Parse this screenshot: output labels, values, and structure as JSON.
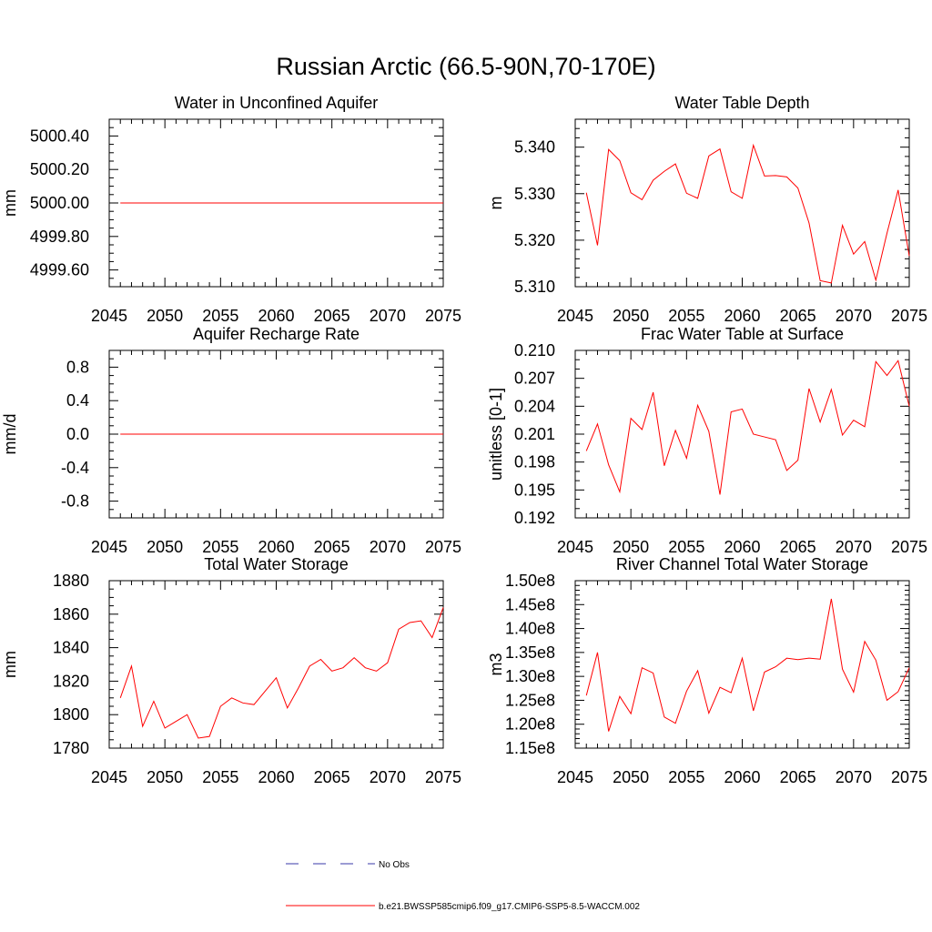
{
  "figure": {
    "title": "Russian Arctic (66.5-90N,70-170E)"
  },
  "colors": {
    "model": "#ff0000",
    "obs": "#3a3aa8",
    "axis": "#000000"
  },
  "legend": {
    "placement": "bottom-center",
    "entries": [
      {
        "label": "No Obs",
        "style": "dashed",
        "color": "#3a3aa8"
      },
      {
        "label": "b.e21.BWSSP585cmip6.f09_g17.CMIP6-SSP5-8.5-WACCM.002",
        "style": "solid",
        "color": "#ff0000"
      }
    ]
  },
  "chart_data": [
    {
      "type": "line",
      "title": "Water in Unconfined Aquifer",
      "ylabel": "mm",
      "xlim": [
        2045,
        2075
      ],
      "ylim": [
        4999.5,
        5000.5
      ],
      "xticks": [
        2045,
        2050,
        2055,
        2060,
        2065,
        2070,
        2075
      ],
      "yticks": [
        4999.6,
        4999.8,
        5000.0,
        5000.2,
        5000.4
      ],
      "ytick_labels": [
        "4999.60",
        "4999.80",
        "5000.00",
        "5000.20",
        "5000.40"
      ],
      "ydigits": 2,
      "yminor": 0.05,
      "x": [
        2046,
        2047,
        2048,
        2049,
        2050,
        2051,
        2052,
        2053,
        2054,
        2055,
        2056,
        2057,
        2058,
        2059,
        2060,
        2061,
        2062,
        2063,
        2064,
        2065,
        2066,
        2067,
        2068,
        2069,
        2070,
        2071,
        2072,
        2073,
        2074,
        2075
      ],
      "series": [
        {
          "name": "b.e21.BWSSP585cmip6.f09_g17.CMIP6-SSP5-8.5-WACCM.002",
          "values": [
            5000,
            5000,
            5000,
            5000,
            5000,
            5000,
            5000,
            5000,
            5000,
            5000,
            5000,
            5000,
            5000,
            5000,
            5000,
            5000,
            5000,
            5000,
            5000,
            5000,
            5000,
            5000,
            5000,
            5000,
            5000,
            5000,
            5000,
            5000,
            5000,
            5000
          ]
        }
      ]
    },
    {
      "type": "line",
      "title": "Water Table Depth",
      "ylabel": "m",
      "xlim": [
        2045,
        2075
      ],
      "ylim": [
        5.31,
        5.346
      ],
      "xticks": [
        2045,
        2050,
        2055,
        2060,
        2065,
        2070,
        2075
      ],
      "yticks": [
        5.31,
        5.32,
        5.33,
        5.34
      ],
      "ytick_labels": [
        "5.310",
        "5.320",
        "5.330",
        "5.340"
      ],
      "ydigits": 3,
      "yminor": 0.002,
      "x": [
        2046,
        2047,
        2048,
        2049,
        2050,
        2051,
        2052,
        2053,
        2054,
        2055,
        2056,
        2057,
        2058,
        2059,
        2060,
        2061,
        2062,
        2063,
        2064,
        2065,
        2066,
        2067,
        2068,
        2069,
        2070,
        2071,
        2072,
        2073,
        2074,
        2075
      ],
      "series": [
        {
          "name": "b.e21.BWSSP585cmip6.f09_g17.CMIP6-SSP5-8.5-WACCM.002",
          "values": [
            5.3302,
            5.3189,
            5.3395,
            5.3371,
            5.3302,
            5.3287,
            5.3329,
            5.3348,
            5.3364,
            5.3301,
            5.329,
            5.3381,
            5.3396,
            5.3304,
            5.329,
            5.3404,
            5.3338,
            5.3339,
            5.3336,
            5.3312,
            5.3237,
            5.3113,
            5.3108,
            5.3232,
            5.317,
            5.3197,
            5.3114,
            5.3215,
            5.3308,
            5.3166
          ]
        }
      ]
    },
    {
      "type": "line",
      "title": "Aquifer Recharge Rate",
      "ylabel": "mm/d",
      "xlim": [
        2045,
        2075
      ],
      "ylim": [
        -1.0,
        1.0
      ],
      "xticks": [
        2045,
        2050,
        2055,
        2060,
        2065,
        2070,
        2075
      ],
      "yticks": [
        -0.8,
        -0.4,
        0.0,
        0.4,
        0.8
      ],
      "ytick_labels": [
        "-0.8",
        "-0.4",
        "0.0",
        "0.4",
        "0.8"
      ],
      "ydigits": 1,
      "yminor": 0.1,
      "x": [
        2046,
        2047,
        2048,
        2049,
        2050,
        2051,
        2052,
        2053,
        2054,
        2055,
        2056,
        2057,
        2058,
        2059,
        2060,
        2061,
        2062,
        2063,
        2064,
        2065,
        2066,
        2067,
        2068,
        2069,
        2070,
        2071,
        2072,
        2073,
        2074,
        2075
      ],
      "series": [
        {
          "name": "b.e21.BWSSP585cmip6.f09_g17.CMIP6-SSP5-8.5-WACCM.002",
          "values": [
            0,
            0,
            0,
            0,
            0,
            0,
            0,
            0,
            0,
            0,
            0,
            0,
            0,
            0,
            0,
            0,
            0,
            0,
            0,
            0,
            0,
            0,
            0,
            0,
            0,
            0,
            0,
            0,
            0,
            0
          ]
        }
      ]
    },
    {
      "type": "line",
      "title": "Frac Water Table at Surface",
      "ylabel": "unitless [0-1]",
      "xlim": [
        2045,
        2075
      ],
      "ylim": [
        0.192,
        0.21
      ],
      "xticks": [
        2045,
        2050,
        2055,
        2060,
        2065,
        2070,
        2075
      ],
      "yticks": [
        0.192,
        0.195,
        0.198,
        0.201,
        0.204,
        0.207,
        0.21
      ],
      "ytick_labels": [
        "0.192",
        "0.195",
        "0.198",
        "0.201",
        "0.204",
        "0.207",
        "0.210"
      ],
      "ydigits": 3,
      "yminor": 0.001,
      "x": [
        2046,
        2047,
        2048,
        2049,
        2050,
        2051,
        2052,
        2053,
        2054,
        2055,
        2056,
        2057,
        2058,
        2059,
        2060,
        2061,
        2062,
        2063,
        2064,
        2065,
        2066,
        2067,
        2068,
        2069,
        2070,
        2071,
        2072,
        2073,
        2074,
        2075
      ],
      "series": [
        {
          "name": "b.e21.BWSSP585cmip6.f09_g17.CMIP6-SSP5-8.5-WACCM.002",
          "values": [
            0.1992,
            0.2021,
            0.1977,
            0.1948,
            0.2027,
            0.2015,
            0.2055,
            0.1976,
            0.2014,
            0.1984,
            0.2041,
            0.2013,
            0.1945,
            0.2034,
            0.2037,
            0.201,
            0.2007,
            0.2004,
            0.1971,
            0.1982,
            0.2059,
            0.2023,
            0.2058,
            0.2009,
            0.2025,
            0.2018,
            0.2088,
            0.2073,
            0.2089,
            0.204
          ]
        }
      ]
    },
    {
      "type": "line",
      "title": "Total Water Storage",
      "ylabel": "mm",
      "xlim": [
        2045,
        2075
      ],
      "ylim": [
        1780,
        1880
      ],
      "xticks": [
        2045,
        2050,
        2055,
        2060,
        2065,
        2070,
        2075
      ],
      "yticks": [
        1780,
        1800,
        1820,
        1840,
        1860,
        1880
      ],
      "ytick_labels": [
        "1780",
        "1800",
        "1820",
        "1840",
        "1860",
        "1880"
      ],
      "ydigits": 0,
      "yminor": 5,
      "x": [
        2046,
        2047,
        2048,
        2049,
        2050,
        2051,
        2052,
        2053,
        2054,
        2055,
        2056,
        2057,
        2058,
        2059,
        2060,
        2061,
        2062,
        2063,
        2064,
        2065,
        2066,
        2067,
        2068,
        2069,
        2070,
        2071,
        2072,
        2073,
        2074,
        2075
      ],
      "series": [
        {
          "name": "b.e21.BWSSP585cmip6.f09_g17.CMIP6-SSP5-8.5-WACCM.002",
          "values": [
            1810,
            1829,
            1793,
            1808,
            1792,
            1796,
            1800,
            1786,
            1787,
            1805,
            1810,
            1807,
            1806,
            1814,
            1822,
            1804,
            1816,
            1829,
            1833,
            1826,
            1828,
            1834,
            1828,
            1826,
            1831,
            1851,
            1855,
            1856,
            1846,
            1864
          ]
        }
      ]
    },
    {
      "type": "line",
      "title": "River Channel Total Water Storage",
      "ylabel": "m3",
      "xlim": [
        2045,
        2075
      ],
      "ylim": [
        115000000,
        150000000
      ],
      "xticks": [
        2045,
        2050,
        2055,
        2060,
        2065,
        2070,
        2075
      ],
      "yticks": [
        115000000,
        120000000,
        125000000,
        130000000,
        135000000,
        140000000,
        145000000,
        150000000
      ],
      "ytick_labels": [
        "1.15e8",
        "1.20e8",
        "1.25e8",
        "1.30e8",
        "1.35e8",
        "1.40e8",
        "1.45e8",
        "1.50e8"
      ],
      "ydigits": 0,
      "yminor": 1000000,
      "x": [
        2046,
        2047,
        2048,
        2049,
        2050,
        2051,
        2052,
        2053,
        2054,
        2055,
        2056,
        2057,
        2058,
        2059,
        2060,
        2061,
        2062,
        2063,
        2064,
        2065,
        2066,
        2067,
        2068,
        2069,
        2070,
        2071,
        2072,
        2073,
        2074,
        2075
      ],
      "series": [
        {
          "name": "b.e21.BWSSP585cmip6.f09_g17.CMIP6-SSP5-8.5-WACCM.002",
          "values": [
            126000000,
            135000000,
            118500000,
            125800000,
            122200000,
            131800000,
            130700000,
            121500000,
            120200000,
            126900000,
            131200000,
            122300000,
            127700000,
            126600000,
            133800000,
            122800000,
            130900000,
            132000000,
            133800000,
            133500000,
            133800000,
            133600000,
            146200000,
            131500000,
            126700000,
            137300000,
            133400000,
            125000000,
            126800000,
            131800000
          ]
        }
      ]
    }
  ]
}
